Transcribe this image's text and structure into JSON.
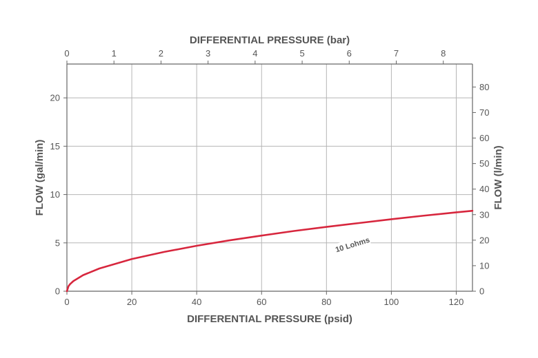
{
  "chart_data": {
    "type": "line",
    "x_bottom": {
      "label": "DIFFERENTIAL PRESSURE (psid)",
      "range": [
        0,
        125
      ],
      "ticks": [
        0,
        20,
        40,
        60,
        80,
        100,
        120
      ]
    },
    "x_top": {
      "label": "DIFFERENTIAL PRESSURE (bar)",
      "range": [
        0,
        8.62
      ],
      "ticks": [
        0,
        1,
        2,
        3,
        4,
        5,
        6,
        7,
        8
      ]
    },
    "y_left": {
      "label": "FLOW (gal/min)",
      "range": [
        0,
        23.5
      ],
      "ticks": [
        0,
        5,
        10,
        15,
        20
      ]
    },
    "y_right": {
      "label": "FLOW (l/min)",
      "range": [
        0,
        89
      ],
      "ticks": [
        0,
        10,
        20,
        30,
        40,
        50,
        60,
        70,
        80
      ]
    },
    "grid": true,
    "series": [
      {
        "name": "10 Lohms",
        "color": "#d7263d",
        "x": [
          0,
          0.5,
          1,
          2,
          5,
          10,
          20,
          30,
          40,
          50,
          60,
          70,
          80,
          90,
          100,
          110,
          120,
          125
        ],
        "y": [
          0,
          1.99,
          2.82,
          3.98,
          6.3,
          8.9,
          12.6,
          15.4,
          17.8,
          19.9,
          21.8,
          23.6,
          25.2,
          26.7,
          28.2,
          29.6,
          30.9,
          31.5
        ]
      }
    ],
    "annotations": [
      {
        "text": "10 Lohms",
        "x": 88,
        "y": 18.3
      }
    ]
  }
}
